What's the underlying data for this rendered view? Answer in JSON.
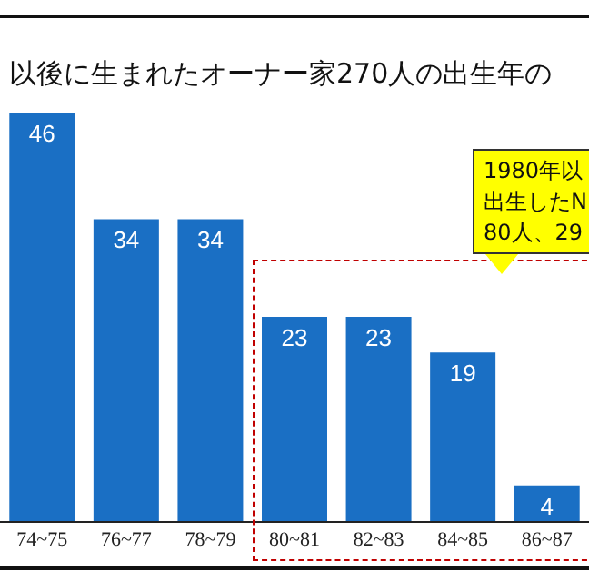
{
  "chart_data": {
    "type": "bar",
    "title": "以後に生まれたオーナー家270人の出生年の",
    "categories": [
      "74~75",
      "76~77",
      "78~79",
      "80~81",
      "82~83",
      "84~85",
      "86~87"
    ],
    "values": [
      46,
      34,
      34,
      23,
      23,
      19,
      4
    ],
    "color": "#1a6fc4",
    "data_labels": true,
    "annotations": [
      "1980年以出生したN80人、29"
    ]
  }
}
